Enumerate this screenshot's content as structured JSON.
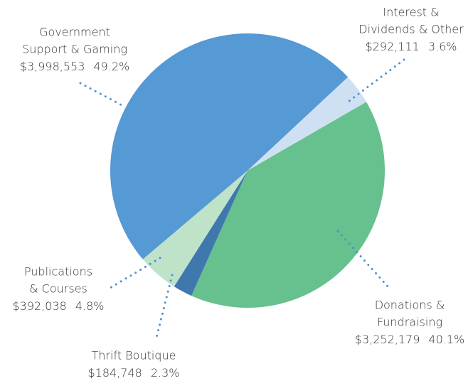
{
  "chart_data": {
    "type": "pie",
    "categories": [
      [
        "Interest &",
        "Dividends & Other"
      ],
      [
        "Donations &",
        "Fundraising"
      ],
      [
        "Thrift Boutique"
      ],
      [
        "Publications",
        "& Courses"
      ],
      [
        "Government",
        "Support & Gaming"
      ]
    ],
    "values": [
      292111,
      3252179,
      184748,
      392038,
      3998553
    ],
    "value_labels": [
      "$292,111",
      "$3,252,179",
      "$184,748",
      "$392,038",
      "$3,998,553"
    ],
    "shares": [
      3.6,
      40.1,
      2.3,
      4.8,
      49.2
    ],
    "share_labels": [
      "3.6%",
      "40.1%",
      "2.3%",
      "4.8%",
      "49.2%"
    ],
    "colors": [
      "#d0e0f3",
      "#66c18e",
      "#3f78ad",
      "#bfe3c9",
      "#5599d5"
    ]
  }
}
